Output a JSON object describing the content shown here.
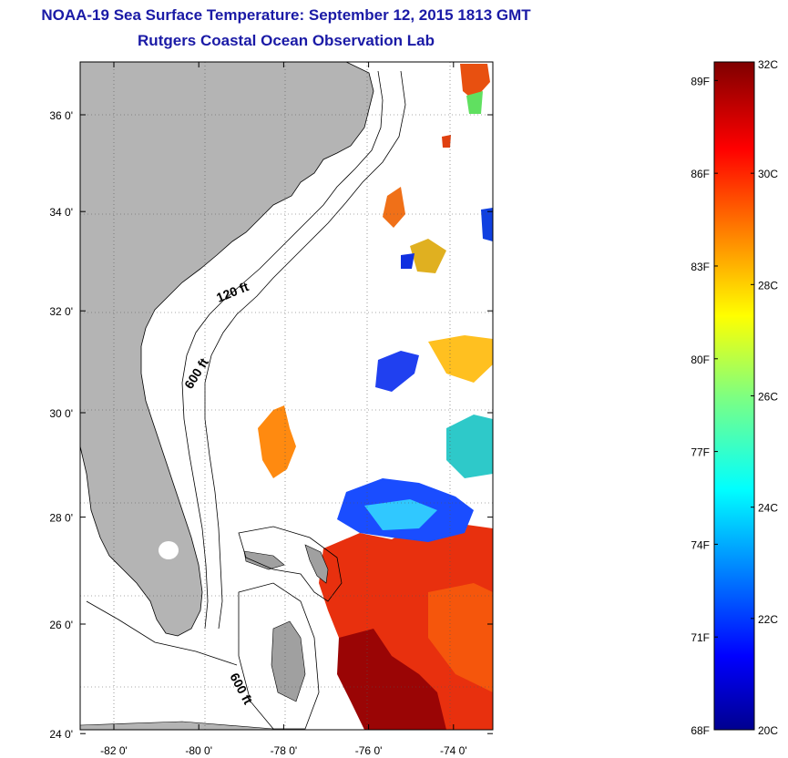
{
  "header": {
    "title": "NOAA-19 Sea Surface Temperature:  September 12, 2015 1813 GMT",
    "subtitle": "Rutgers Coastal Ocean Observation Lab"
  },
  "map": {
    "lat_ticks": [
      {
        "lat": 36,
        "label": "36 0'"
      },
      {
        "lat": 34,
        "label": "34 0'"
      },
      {
        "lat": 32,
        "label": "32 0'"
      },
      {
        "lat": 30,
        "label": "30 0'"
      },
      {
        "lat": 28,
        "label": "28 0'"
      },
      {
        "lat": 26,
        "label": "26 0'"
      },
      {
        "lat": 24,
        "label": "24 0'"
      }
    ],
    "lon_ticks": [
      {
        "lon": -82,
        "label": "-82 0'"
      },
      {
        "lon": -80,
        "label": "-80 0'"
      },
      {
        "lon": -78,
        "label": "-78 0'"
      },
      {
        "lon": -76,
        "label": "-76 0'"
      },
      {
        "lon": -74,
        "label": "-74 0'"
      }
    ],
    "contour_labels": {
      "c120": "120 ft",
      "c600a": "600 ft",
      "c600b": "600 ft"
    },
    "colors": {
      "land": "#b4b4b4",
      "contour": "#000000",
      "grid": "#555555"
    }
  },
  "colorbar": {
    "min_c": 20,
    "max_c": 32,
    "celsius": [
      {
        "value": 32,
        "label": "32C"
      },
      {
        "value": 30,
        "label": "30C"
      },
      {
        "value": 28,
        "label": "28C"
      },
      {
        "value": 26,
        "label": "26C"
      },
      {
        "value": 24,
        "label": "24C"
      },
      {
        "value": 22,
        "label": "22C"
      },
      {
        "value": 20,
        "label": "20C"
      }
    ],
    "fahrenheit": [
      {
        "value": 89,
        "label": "89F"
      },
      {
        "value": 86,
        "label": "86F"
      },
      {
        "value": 83,
        "label": "83F"
      },
      {
        "value": 80,
        "label": "80F"
      },
      {
        "value": 77,
        "label": "77F"
      },
      {
        "value": 74,
        "label": "74F"
      },
      {
        "value": 71,
        "label": "71F"
      },
      {
        "value": 68,
        "label": "68F"
      }
    ]
  }
}
